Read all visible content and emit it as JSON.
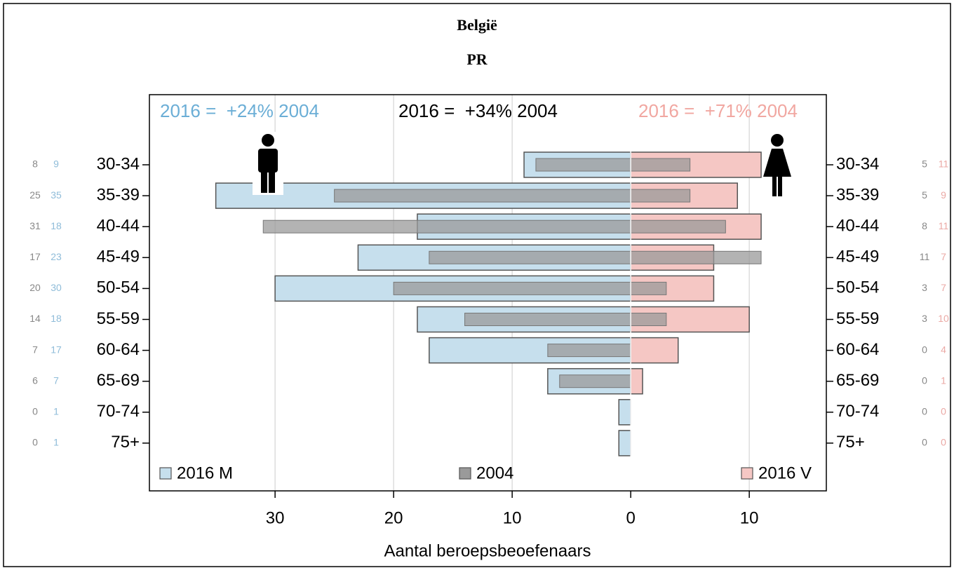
{
  "chart_data": {
    "type": "pyramid",
    "title": "België",
    "subtitle": "PR",
    "x_label": "Aantal beroepsbeoefenaars",
    "annotations": [
      {
        "text": "2016 =  +24% 2004",
        "color": "#6baed6"
      },
      {
        "text": "2016 =  +34% 2004",
        "color": "#000000"
      },
      {
        "text": "2016 =  +71% 2004",
        "color": "#f1a7a1"
      }
    ],
    "categories": [
      "30-34",
      "35-39",
      "40-44",
      "45-49",
      "50-54",
      "55-59",
      "60-64",
      "65-69",
      "70-74",
      "75+"
    ],
    "series": [
      {
        "name": "2016 M",
        "color": "#c6dfed",
        "label_color": "#8fbcd9",
        "values": [
          9,
          35,
          18,
          23,
          30,
          18,
          17,
          7,
          1,
          1
        ]
      },
      {
        "name": "2004",
        "color": "#9a9a9a",
        "label_color": "#888888",
        "values": [
          8,
          25,
          31,
          17,
          20,
          14,
          7,
          6,
          0,
          0
        ],
        "values_right": [
          5,
          5,
          8,
          11,
          3,
          3,
          0,
          0,
          0,
          0
        ]
      },
      {
        "name": "2016 V",
        "color": "#f5c7c4",
        "label_color": "#eba9a5",
        "values": [
          11,
          9,
          11,
          7,
          7,
          10,
          4,
          1,
          0,
          0
        ]
      }
    ],
    "xlim": [
      -40.6,
      16.5
    ],
    "xticks": [
      {
        "value": -30,
        "label": "30"
      },
      {
        "value": -20,
        "label": "20"
      },
      {
        "value": -10,
        "label": "10"
      },
      0,
      10
    ],
    "grid": true
  }
}
